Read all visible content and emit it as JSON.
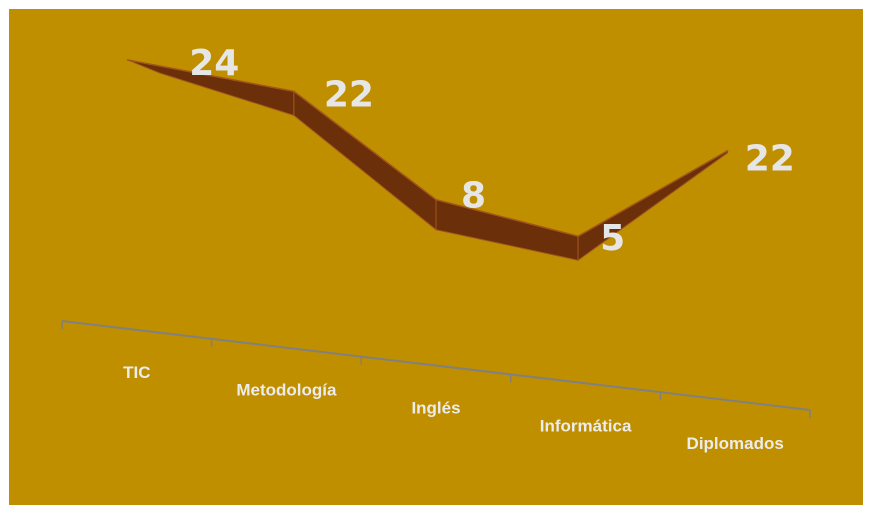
{
  "chart_data": {
    "type": "line",
    "categories": [
      "TIC",
      "Metodología",
      "Inglés",
      "Informática",
      "Diplomados"
    ],
    "values": [
      24,
      22,
      8,
      5,
      22
    ],
    "data_labels": [
      "24",
      "22",
      "8",
      "5",
      "22"
    ],
    "title": "",
    "xlabel": "",
    "ylabel": "",
    "grid": false,
    "legend": "none",
    "colors": {
      "background": "#bf8f00",
      "ribbon": "#6b300a",
      "ribbon_edge": "#a3551e",
      "axis": "#808080",
      "text": "#ececec"
    }
  }
}
